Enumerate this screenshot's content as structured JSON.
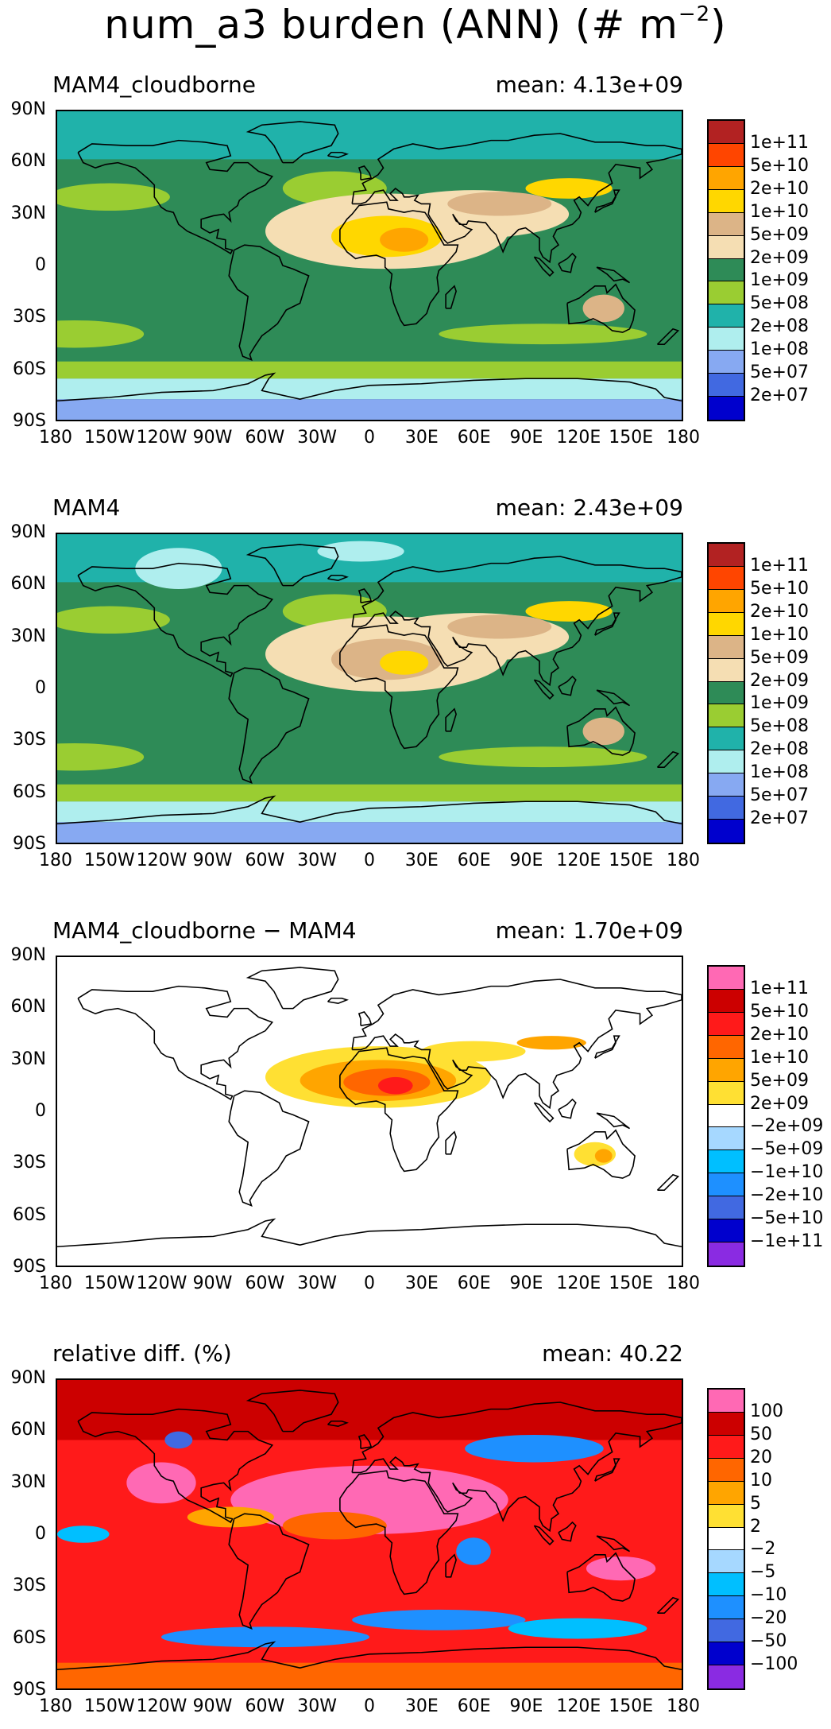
{
  "figure": {
    "title_main": "num_a3 burden (ANN) (# m",
    "title_exp": "−2",
    "title_close": ")"
  },
  "axes": {
    "y_labels": [
      "90N",
      "60N",
      "30N",
      "0",
      "30S",
      "60S",
      "90S"
    ],
    "x_labels": [
      "180",
      "150W",
      "120W",
      "90W",
      "60W",
      "30W",
      "0",
      "30E",
      "60E",
      "90E",
      "120E",
      "150E",
      "180"
    ]
  },
  "panels": [
    {
      "title": "MAM4_cloudborne",
      "mean": "mean: 4.13e+09",
      "colorbar": {
        "colors": [
          "#b22222",
          "#ff4500",
          "#ffa500",
          "#ffd700",
          "#dcb487",
          "#f5deb3",
          "#2e8b57",
          "#9acd32",
          "#20b2aa",
          "#afeeee",
          "#87a9f2",
          "#4169e1",
          "#0000cd"
        ],
        "labels": [
          "1e+11",
          "5e+10",
          "2e+10",
          "1e+10",
          "5e+09",
          "2e+09",
          "1e+09",
          "5e+08",
          "2e+08",
          "1e+08",
          "5e+07",
          "2e+07"
        ]
      }
    },
    {
      "title": "MAM4",
      "mean": "mean: 2.43e+09",
      "colorbar": {
        "colors": [
          "#b22222",
          "#ff4500",
          "#ffa500",
          "#ffd700",
          "#dcb487",
          "#f5deb3",
          "#2e8b57",
          "#9acd32",
          "#20b2aa",
          "#afeeee",
          "#87a9f2",
          "#4169e1",
          "#0000cd"
        ],
        "labels": [
          "1e+11",
          "5e+10",
          "2e+10",
          "1e+10",
          "5e+09",
          "2e+09",
          "1e+09",
          "5e+08",
          "2e+08",
          "1e+08",
          "5e+07",
          "2e+07"
        ]
      }
    },
    {
      "title": "MAM4_cloudborne − MAM4",
      "mean": "mean: 1.70e+09",
      "colorbar": {
        "colors": [
          "#ff69b4",
          "#cc0000",
          "#ff1a1a",
          "#ff6600",
          "#ffa500",
          "#ffe033",
          "#ffffff",
          "#a6d8ff",
          "#00bfff",
          "#1e90ff",
          "#4169e1",
          "#0000cd",
          "#8a2be2"
        ],
        "labels": [
          "1e+11",
          "5e+10",
          "2e+10",
          "1e+10",
          "5e+09",
          "2e+09",
          "−2e+09",
          "−5e+09",
          "−1e+10",
          "−2e+10",
          "−5e+10",
          "−1e+11"
        ]
      }
    },
    {
      "title": "relative diff. (%)",
      "mean": "mean: 40.22",
      "colorbar": {
        "colors": [
          "#ff69b4",
          "#cc0000",
          "#ff1a1a",
          "#ff6600",
          "#ffa500",
          "#ffe033",
          "#ffffff",
          "#a6d8ff",
          "#00bfff",
          "#1e90ff",
          "#4169e1",
          "#0000cd",
          "#8a2be2"
        ],
        "labels": [
          "100",
          "50",
          "20",
          "10",
          "5",
          "2",
          "−2",
          "−5",
          "−10",
          "−20",
          "−50",
          "−100"
        ]
      }
    }
  ],
  "chart_data": [
    {
      "type": "heatmap",
      "title": "MAM4_cloudborne",
      "annotation": "mean: 4.13e+09",
      "xlim": [
        -180,
        180
      ],
      "ylim": [
        -90,
        90
      ],
      "x_ticks": [
        "180",
        "150W",
        "120W",
        "90W",
        "60W",
        "30W",
        "0",
        "30E",
        "60E",
        "90E",
        "120E",
        "150E",
        "180"
      ],
      "y_ticks": [
        "90N",
        "60N",
        "30N",
        "0",
        "30S",
        "60S",
        "90S"
      ],
      "contour_levels": [
        "2e+07",
        "5e+07",
        "1e+08",
        "2e+08",
        "5e+08",
        "1e+09",
        "2e+09",
        "5e+09",
        "1e+10",
        "2e+10",
        "5e+10",
        "1e+11"
      ]
    },
    {
      "type": "heatmap",
      "title": "MAM4",
      "annotation": "mean: 2.43e+09",
      "xlim": [
        -180,
        180
      ],
      "ylim": [
        -90,
        90
      ],
      "contour_levels": [
        "2e+07",
        "5e+07",
        "1e+08",
        "2e+08",
        "5e+08",
        "1e+09",
        "2e+09",
        "5e+09",
        "1e+10",
        "2e+10",
        "5e+10",
        "1e+11"
      ]
    },
    {
      "type": "heatmap",
      "title": "MAM4_cloudborne − MAM4",
      "annotation": "mean: 1.70e+09",
      "xlim": [
        -180,
        180
      ],
      "ylim": [
        -90,
        90
      ],
      "contour_levels": [
        "−1e+11",
        "−5e+10",
        "−2e+10",
        "−1e+10",
        "−5e+09",
        "−2e+09",
        "2e+09",
        "5e+09",
        "1e+10",
        "2e+10",
        "5e+10",
        "1e+11"
      ]
    },
    {
      "type": "heatmap",
      "title": "relative diff. (%)",
      "annotation": "mean: 40.22",
      "xlim": [
        -180,
        180
      ],
      "ylim": [
        -90,
        90
      ],
      "contour_levels": [
        "−100",
        "−50",
        "−20",
        "−10",
        "−5",
        "−2",
        "2",
        "5",
        "10",
        "20",
        "50",
        "100"
      ]
    }
  ]
}
